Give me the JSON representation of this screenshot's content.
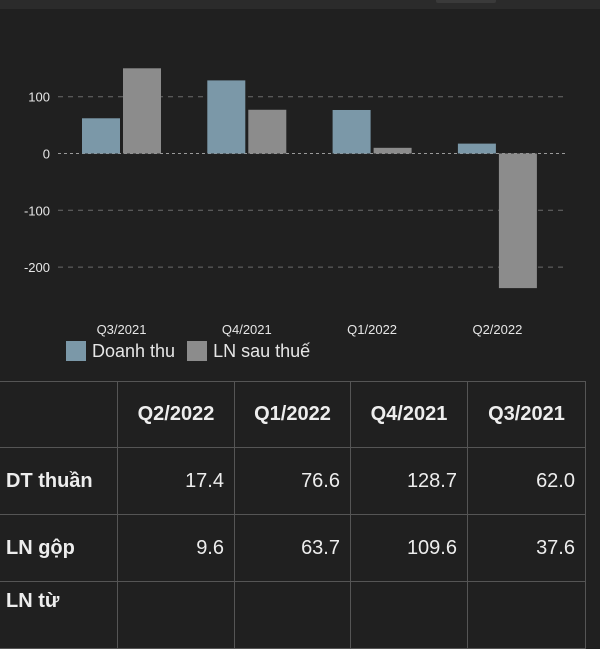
{
  "chart_data": {
    "type": "bar",
    "categories": [
      "Q3/2021",
      "Q4/2021",
      "Q1/2022",
      "Q2/2022"
    ],
    "series": [
      {
        "name": "Doanh thu",
        "values": [
          62.0,
          128.7,
          76.6,
          17.4
        ],
        "color": "#7b98a8"
      },
      {
        "name": "LN sau thuế",
        "values": [
          150,
          77,
          10,
          -237
        ],
        "color": "#8c8c8c"
      }
    ],
    "y_ticks": [
      100,
      0,
      -100,
      -200
    ],
    "ylim": [
      -270,
      175
    ],
    "grid": true,
    "legend": "bottom-left"
  },
  "table": {
    "columns": [
      "",
      "Q2/2022",
      "Q1/2022",
      "Q4/2021",
      "Q3/2021"
    ],
    "rows": [
      {
        "label": "DT thuần",
        "values": [
          "17.4",
          "76.6",
          "128.7",
          "62.0"
        ]
      },
      {
        "label": "LN gộp",
        "values": [
          "9.6",
          "63.7",
          "109.6",
          "37.6"
        ]
      },
      {
        "label": "LN từ",
        "values": [
          "",
          "",
          "",
          ""
        ]
      }
    ]
  }
}
